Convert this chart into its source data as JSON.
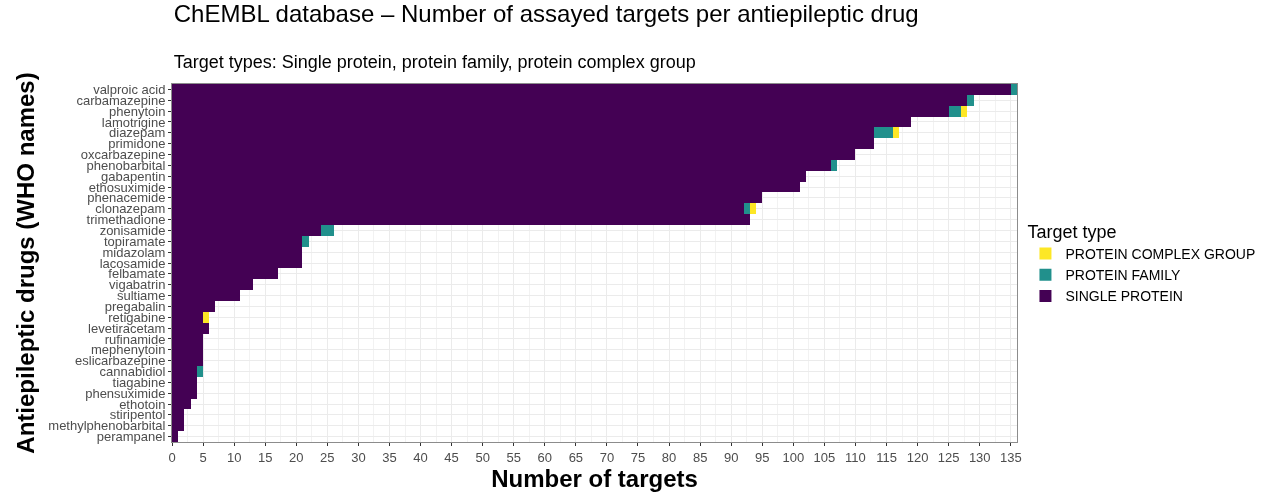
{
  "chart_data": {
    "type": "bar",
    "orientation": "horizontal",
    "stacked": true,
    "title": "ChEMBL database – Number of assayed targets per antiepileptic drug",
    "subtitle": "Target types: Single protein, protein family, protein complex group",
    "xlabel": "Number of targets",
    "ylabel": "Antiepileptic drugs (WHO names)",
    "legend_title": "Target type",
    "categories": [
      "valproic acid",
      "carbamazepine",
      "phenytoin",
      "lamotrigine",
      "diazepam",
      "primidone",
      "oxcarbazepine",
      "phenobarbital",
      "gabapentin",
      "ethosuximide",
      "phenacemide",
      "clonazepam",
      "trimethadione",
      "zonisamide",
      "topiramate",
      "midazolam",
      "lacosamide",
      "felbamate",
      "vigabatrin",
      "sultiame",
      "pregabalin",
      "retigabine",
      "levetiracetam",
      "rufinamide",
      "mephenytoin",
      "eslicarbazepine",
      "cannabidiol",
      "tiagabine",
      "phensuximide",
      "ethotoin",
      "stiripentol",
      "methylphenobarbital",
      "perampanel"
    ],
    "series": [
      {
        "name": "SINGLE PROTEIN",
        "color": "#440154",
        "values": [
          135,
          128,
          125,
          119,
          113,
          113,
          110,
          106,
          102,
          101,
          95,
          92,
          93,
          24,
          21,
          21,
          21,
          17,
          13,
          11,
          7,
          5,
          6,
          5,
          5,
          5,
          4,
          4,
          4,
          3,
          2,
          2,
          1
        ]
      },
      {
        "name": "PROTEIN FAMILY",
        "color": "#21908c",
        "values": [
          1,
          1,
          2,
          null,
          3,
          null,
          null,
          1,
          null,
          null,
          null,
          1,
          null,
          2,
          1,
          null,
          null,
          null,
          null,
          null,
          null,
          null,
          null,
          null,
          null,
          null,
          1,
          null,
          null,
          null,
          null,
          null,
          null
        ]
      },
      {
        "name": "PROTEIN COMPLEX GROUP",
        "color": "#fde725",
        "values": [
          null,
          null,
          1,
          null,
          1,
          null,
          null,
          null,
          null,
          null,
          null,
          1,
          null,
          null,
          null,
          null,
          null,
          null,
          null,
          null,
          null,
          1,
          null,
          null,
          null,
          null,
          null,
          null,
          null,
          null,
          null,
          null,
          null
        ]
      }
    ],
    "xlim": [
      0,
      136
    ],
    "xticks": [
      0,
      5,
      10,
      15,
      20,
      25,
      30,
      35,
      40,
      45,
      50,
      55,
      60,
      65,
      70,
      75,
      80,
      85,
      90,
      95,
      100,
      105,
      110,
      115,
      120,
      125,
      130,
      135
    ],
    "grid": true,
    "legend": "right"
  }
}
